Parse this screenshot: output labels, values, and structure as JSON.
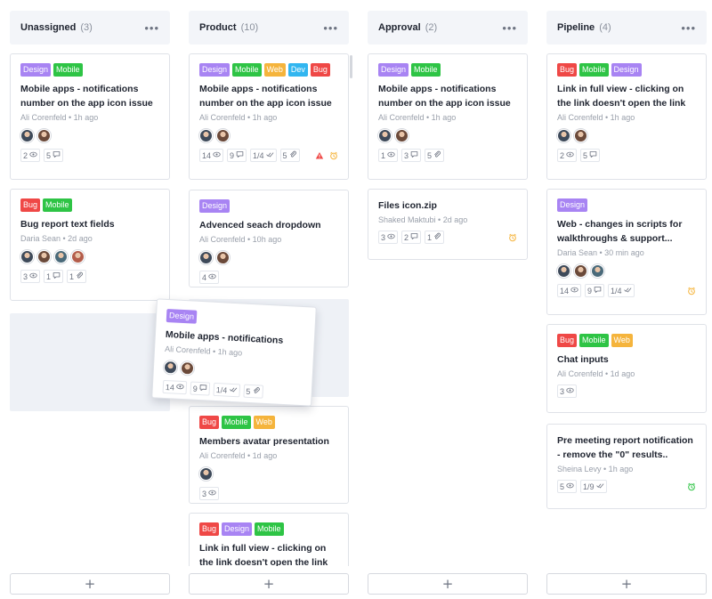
{
  "columns": [
    {
      "title": "Unassigned",
      "count": "(3)"
    },
    {
      "title": "Product",
      "count": "(10)"
    },
    {
      "title": "Approval",
      "count": "(2)"
    },
    {
      "title": "Pipeline",
      "count": "(4)"
    }
  ],
  "tag_colors": {
    "Design": "#a884f3",
    "Mobile": "#2ec445",
    "Web": "#f5b43c",
    "Dev": "#32b6f0",
    "Bug": "#ef4846"
  },
  "cards": {
    "unassigned": [
      {
        "tags": [
          "Design",
          "Mobile"
        ],
        "title": "Mobile apps - notifications number on the app icon issue",
        "meta": "Ali Corenfeld • 1h ago",
        "views": "2",
        "comments": "5"
      },
      {
        "tags": [
          "Bug",
          "Mobile"
        ],
        "title": "Bug report text fields",
        "meta": "Daria Sean • 2d ago",
        "views": "3",
        "comments": "1",
        "attachments": "1"
      }
    ],
    "product": [
      {
        "tags": [
          "Design",
          "Mobile",
          "Web",
          "Dev",
          "Bug"
        ],
        "title": "Mobile apps - notifications number on the app icon issue",
        "meta": "Ali Corenfeld • 1h ago",
        "views": "14",
        "comments": "9",
        "checklist": "1/4",
        "attachments": "5"
      },
      {
        "tags": [
          "Design"
        ],
        "title": "Advenced seach dropdown",
        "meta": "Ali Corenfeld • 10h ago",
        "views": "4"
      },
      {
        "tags": [
          "Bug",
          "Mobile",
          "Web"
        ],
        "title": "Members avatar presentation",
        "meta": "Ali Corenfeld • 1d ago",
        "views": "3"
      },
      {
        "tags": [
          "Bug",
          "Design",
          "Mobile"
        ],
        "title": "Link in full view - clicking on the link doesn't open the link"
      }
    ],
    "approval": [
      {
        "tags": [
          "Design",
          "Mobile"
        ],
        "title": "Mobile apps - notifications number on the app icon issue",
        "meta": "Ali Corenfeld • 1h ago",
        "views": "1",
        "comments": "3",
        "attachments": "5"
      },
      {
        "tags": [],
        "title": "Files icon.zip",
        "meta": "Shaked Maktubi • 2d ago",
        "views": "3",
        "comments": "2",
        "attachments": "1"
      }
    ],
    "pipeline": [
      {
        "tags": [
          "Bug",
          "Mobile",
          "Design"
        ],
        "title": "Link in full view - clicking on the link doesn't open the link",
        "meta": "Ali Corenfeld • 1h ago",
        "views": "2",
        "comments": "5"
      },
      {
        "tags": [
          "Design"
        ],
        "title": "Web - changes in scripts for walkthroughs & support...",
        "meta": "Daria Sean • 30 min ago",
        "views": "14",
        "comments": "9",
        "checklist": "1/4"
      },
      {
        "tags": [
          "Bug",
          "Mobile",
          "Web"
        ],
        "title": "Chat inputs",
        "meta": "Ali Corenfeld • 1d ago",
        "views": "3"
      },
      {
        "tags": [],
        "title": "Pre meeting report notification - remove the \"0\" results..",
        "meta": "Sheina Levy • 1h ago",
        "views": "5",
        "checklist": "1/9"
      }
    ]
  },
  "dragging_card": {
    "tags": [
      "Design"
    ],
    "title": "Mobile apps - notifications",
    "meta": "Ali Corenfeld • 1h ago",
    "views": "14",
    "comments": "9",
    "checklist": "1/4",
    "attachments": "5"
  },
  "add_button_label": "+"
}
